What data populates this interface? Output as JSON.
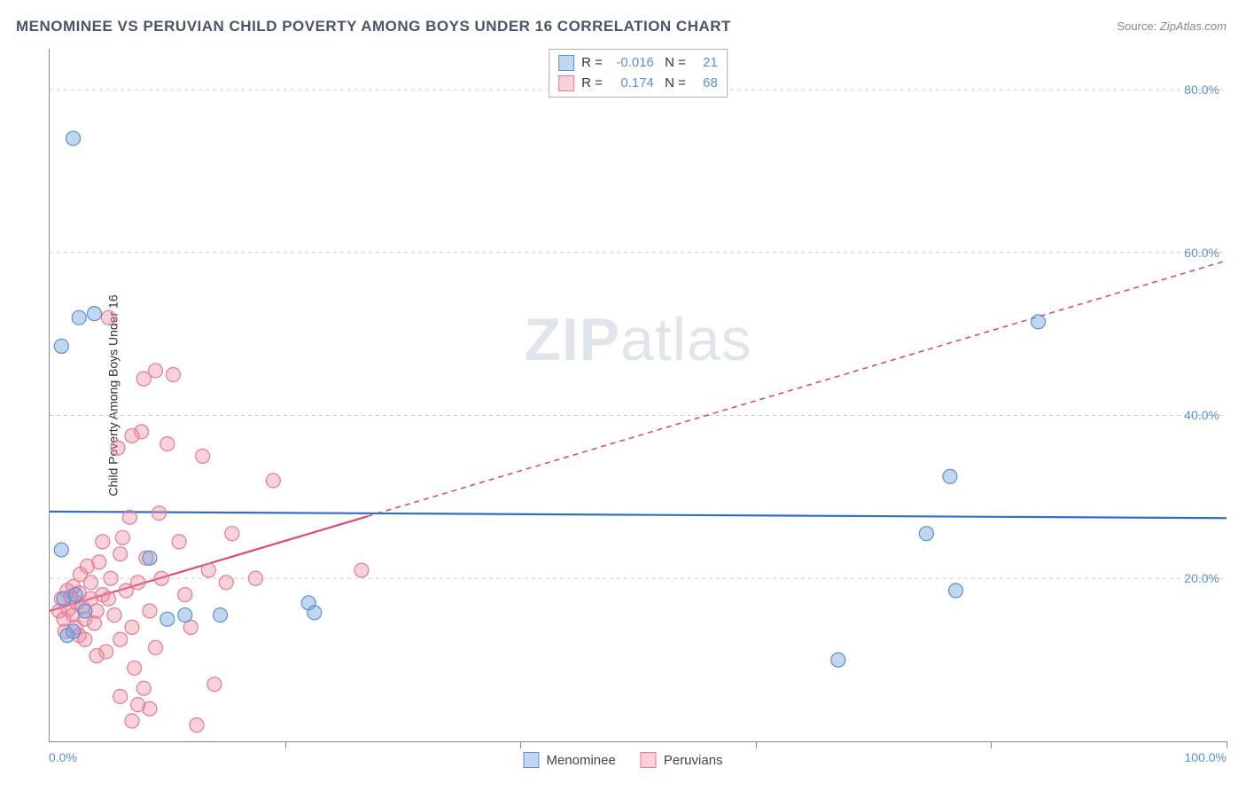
{
  "title": "MENOMINEE VS PERUVIAN CHILD POVERTY AMONG BOYS UNDER 16 CORRELATION CHART",
  "source_label": "Source:",
  "source_value": "ZipAtlas.com",
  "y_axis_label": "Child Poverty Among Boys Under 16",
  "watermark_bold": "ZIP",
  "watermark_rest": "atlas",
  "chart": {
    "type": "scatter",
    "xlim": [
      0,
      100
    ],
    "ylim": [
      0,
      85
    ],
    "x_ticks": [
      0,
      20,
      40,
      60,
      80,
      100
    ],
    "y_gridlines": [
      20,
      40,
      60,
      80
    ],
    "y_tick_labels": [
      "20.0%",
      "40.0%",
      "60.0%",
      "80.0%"
    ],
    "x_min_label": "0.0%",
    "x_max_label": "100.0%",
    "background_color": "#ffffff",
    "grid_color": "#d0d0d0",
    "axis_color": "#888888",
    "marker_radius": 8,
    "marker_stroke_width": 1.2,
    "series": [
      {
        "name": "Menominee",
        "fill": "rgba(120,165,220,0.45)",
        "stroke": "#5b8fd6",
        "r_value": "-0.016",
        "n_value": "21",
        "trend": {
          "slope": -0.008,
          "intercept": 28.2,
          "color": "#2f6fc4",
          "width": 2.2,
          "solid_until_x": 100,
          "dash": null
        },
        "points": [
          [
            1.0,
            48.5
          ],
          [
            2.5,
            52.0
          ],
          [
            3.8,
            52.5
          ],
          [
            2.0,
            74.0
          ],
          [
            1.0,
            23.5
          ],
          [
            1.5,
            13.0
          ],
          [
            2.0,
            13.5
          ],
          [
            10.0,
            15.0
          ],
          [
            11.5,
            15.5
          ],
          [
            14.5,
            15.5
          ],
          [
            22.0,
            17.0
          ],
          [
            22.5,
            15.8
          ],
          [
            1.2,
            17.5
          ],
          [
            2.2,
            18.0
          ],
          [
            3.0,
            16.0
          ],
          [
            8.5,
            22.5
          ],
          [
            67.0,
            10.0
          ],
          [
            74.5,
            25.5
          ],
          [
            77.0,
            18.5
          ],
          [
            76.5,
            32.5
          ],
          [
            84.0,
            51.5
          ]
        ]
      },
      {
        "name": "Peruvians",
        "fill": "rgba(240,140,160,0.40)",
        "stroke": "#e67a94",
        "r_value": "0.174",
        "n_value": "68",
        "trend": {
          "slope": 0.43,
          "intercept": 16.0,
          "color": "#e04a72",
          "width": 2.2,
          "solid_until_x": 27,
          "dash": "6 5"
        },
        "points": [
          [
            0.8,
            16.0
          ],
          [
            1.0,
            17.5
          ],
          [
            1.2,
            15.0
          ],
          [
            1.3,
            13.5
          ],
          [
            1.5,
            18.5
          ],
          [
            1.6,
            16.2
          ],
          [
            1.8,
            17.8
          ],
          [
            2.0,
            15.5
          ],
          [
            2.0,
            19.0
          ],
          [
            2.2,
            14.0
          ],
          [
            2.3,
            17.0
          ],
          [
            2.5,
            18.2
          ],
          [
            2.5,
            13.0
          ],
          [
            2.6,
            20.5
          ],
          [
            2.8,
            16.5
          ],
          [
            3.0,
            15.0
          ],
          [
            3.0,
            12.5
          ],
          [
            3.2,
            21.5
          ],
          [
            3.5,
            17.5
          ],
          [
            3.5,
            19.5
          ],
          [
            3.8,
            14.5
          ],
          [
            4.0,
            16.0
          ],
          [
            4.2,
            22.0
          ],
          [
            4.5,
            24.5
          ],
          [
            4.5,
            18.0
          ],
          [
            4.8,
            11.0
          ],
          [
            5.0,
            17.5
          ],
          [
            5.0,
            52.0
          ],
          [
            5.2,
            20.0
          ],
          [
            5.5,
            15.5
          ],
          [
            5.8,
            36.0
          ],
          [
            6.0,
            23.0
          ],
          [
            6.0,
            12.5
          ],
          [
            6.2,
            25.0
          ],
          [
            6.5,
            18.5
          ],
          [
            6.8,
            27.5
          ],
          [
            7.0,
            14.0
          ],
          [
            7.2,
            9.0
          ],
          [
            7.5,
            19.5
          ],
          [
            7.8,
            38.0
          ],
          [
            8.0,
            44.5
          ],
          [
            8.2,
            22.5
          ],
          [
            8.5,
            16.0
          ],
          [
            8.5,
            4.0
          ],
          [
            9.0,
            45.5
          ],
          [
            9.0,
            11.5
          ],
          [
            9.3,
            28.0
          ],
          [
            9.5,
            20.0
          ],
          [
            6.0,
            5.5
          ],
          [
            7.0,
            2.5
          ],
          [
            7.5,
            4.5
          ],
          [
            8.0,
            6.5
          ],
          [
            10.0,
            36.5
          ],
          [
            10.5,
            45.0
          ],
          [
            11.0,
            24.5
          ],
          [
            11.5,
            18.0
          ],
          [
            12.0,
            14.0
          ],
          [
            12.5,
            2.0
          ],
          [
            13.0,
            35.0
          ],
          [
            13.5,
            21.0
          ],
          [
            14.0,
            7.0
          ],
          [
            15.0,
            19.5
          ],
          [
            15.5,
            25.5
          ],
          [
            17.5,
            20.0
          ],
          [
            19.0,
            32.0
          ],
          [
            26.5,
            21.0
          ],
          [
            7.0,
            37.5
          ],
          [
            4.0,
            10.5
          ]
        ]
      }
    ]
  },
  "legend_bottom": [
    "Menominee",
    "Peruvians"
  ]
}
